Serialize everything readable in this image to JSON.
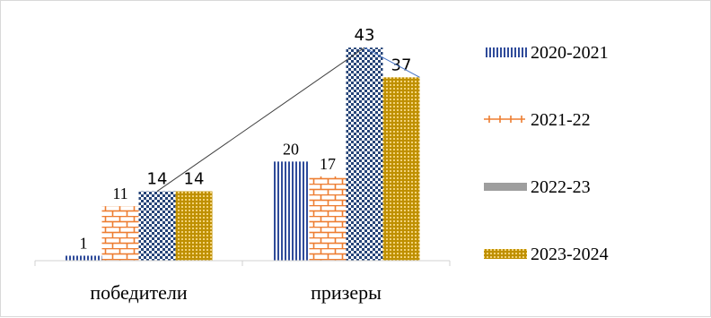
{
  "chart_data": {
    "type": "bar",
    "categories": [
      "победители",
      "призеры"
    ],
    "series": [
      {
        "name": "2020-2021",
        "values": [
          1,
          20
        ],
        "color": "#2f4b9a",
        "pattern": "vertical-lines"
      },
      {
        "name": "2021-22",
        "values": [
          11,
          17
        ],
        "color": "#ed7d31",
        "pattern": "bricks"
      },
      {
        "name": "2022-23",
        "values": [
          14,
          43
        ],
        "color": "#264478",
        "pattern": "checker"
      },
      {
        "name": "2023-2024",
        "values": [
          14,
          37
        ],
        "color": "#bf9000",
        "pattern": "dotted-grid"
      }
    ],
    "trendline": {
      "series": "2022-23",
      "type": "line",
      "color": "#404040"
    },
    "ylim": [
      0,
      47
    ],
    "legend_position": "right",
    "grid": false,
    "title": "",
    "xlabel": "",
    "ylabel": ""
  }
}
